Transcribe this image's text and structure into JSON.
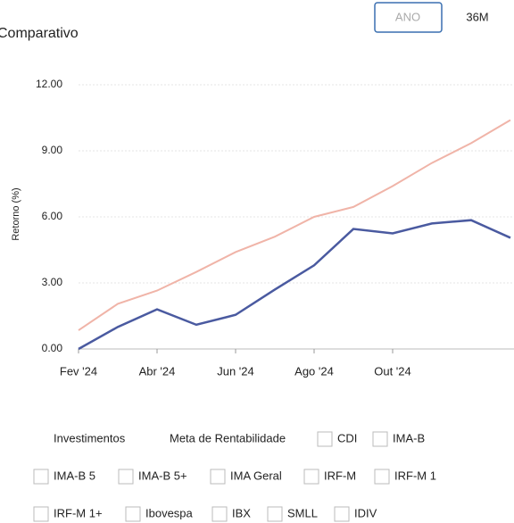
{
  "chart_data": {
    "type": "line",
    "title": "Comparativo",
    "y_label": "Retorno (%)",
    "categories": [
      "Fev '24",
      null,
      "Abr '24",
      null,
      "Jun '24",
      null,
      "Ago '24",
      null,
      "Out '24",
      null,
      null,
      null
    ],
    "series": [
      {
        "name": "Investimentos",
        "color": "#4a5aa0",
        "values": [
          0,
          1.0,
          1.8,
          1.1,
          1.55,
          2.7,
          3.8,
          5.45,
          5.25,
          5.7,
          5.85,
          5.05
        ]
      },
      {
        "name": "Meta de Rentabilidade",
        "color": "#f0b4a8",
        "values": [
          0.85,
          2.05,
          2.65,
          3.5,
          4.4,
          5.1,
          6.0,
          6.45,
          7.4,
          8.45,
          9.35,
          10.4
        ]
      }
    ],
    "ylim": [
      0,
      12
    ],
    "yticks": [
      {
        "value": 0,
        "label": "0.00"
      },
      {
        "value": 3,
        "label": "3.00"
      },
      {
        "value": 6,
        "label": "6.00"
      },
      {
        "value": 9,
        "label": "9.00"
      },
      {
        "value": 12,
        "label": "12.00"
      }
    ],
    "grid": true
  },
  "buttons": [
    "ANO",
    "36M"
  ],
  "filters": [
    "CDI",
    "IMA-B",
    "IMA-B 5",
    "IMA-B 5+",
    "IMA Geral",
    "IRF-M",
    "IRF-M 1",
    "IRF-M 1+",
    "Ibovespa",
    "IBX",
    "SMLL",
    "IDIV"
  ]
}
